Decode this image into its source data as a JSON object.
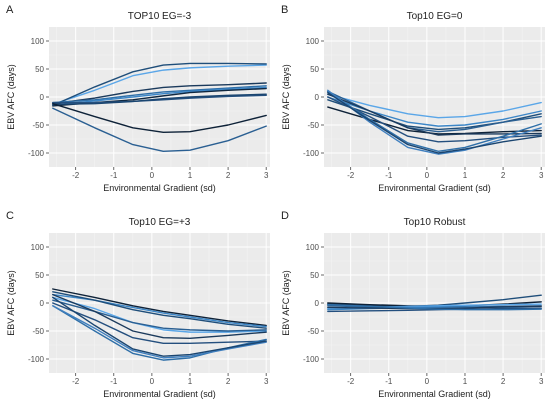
{
  "chart_data": [
    {
      "type": "line",
      "panel_letter": "A",
      "title": "TOP10 EG=-3",
      "xlabel": "Environmental Gradient (sd)",
      "ylabel": "EBV AFC (days)",
      "xlim": [
        -2.7,
        3.1
      ],
      "ylim": [
        -125,
        125
      ],
      "x_ticks": [
        -2,
        -1,
        0,
        1,
        2,
        3
      ],
      "y_ticks": [
        -100,
        -50,
        0,
        50,
        100
      ],
      "grid": true,
      "series": [
        {
          "color": "#5aa6e8",
          "x": [
            -2.6,
            -1.5,
            -0.5,
            0.3,
            1.0,
            2.0,
            3.0
          ],
          "y": [
            -13,
            12,
            38,
            48,
            52,
            55,
            57
          ]
        },
        {
          "color": "#1f4e7a",
          "x": [
            -2.6,
            -1.5,
            -0.5,
            0.3,
            1.0,
            2.0,
            3.0
          ],
          "y": [
            -15,
            18,
            45,
            57,
            60,
            60,
            59
          ]
        },
        {
          "color": "#1b3a5c",
          "x": [
            -2.6,
            -1.5,
            -0.5,
            0.3,
            1.0,
            2.0,
            3.0
          ],
          "y": [
            -12,
            -2,
            10,
            17,
            20,
            22,
            25
          ]
        },
        {
          "color": "#2f6fa8",
          "x": [
            -2.6,
            -1.5,
            -0.5,
            0.3,
            1.0,
            2.0,
            3.0
          ],
          "y": [
            -10,
            -5,
            3,
            9,
            12,
            16,
            20
          ]
        },
        {
          "color": "#3c86c7",
          "x": [
            -2.6,
            -1.5,
            -0.5,
            0.3,
            1.0,
            2.0,
            3.0
          ],
          "y": [
            -14,
            -7,
            0,
            6,
            10,
            14,
            17
          ]
        },
        {
          "color": "#0f2740",
          "x": [
            -2.6,
            -1.5,
            -0.5,
            0.3,
            1.0,
            2.0,
            3.0
          ],
          "y": [
            -16,
            -10,
            -5,
            2,
            8,
            12,
            15
          ]
        },
        {
          "color": "#244f7e",
          "x": [
            -2.6,
            -1.5,
            -0.5,
            0.3,
            1.0,
            2.0,
            3.0
          ],
          "y": [
            -10,
            -10,
            -8,
            -5,
            -2,
            1,
            3
          ]
        },
        {
          "color": "#1a4570",
          "x": [
            -2.6,
            -1.5,
            -0.5,
            0.3,
            1.0,
            2.0,
            3.0
          ],
          "y": [
            -13,
            -12,
            -8,
            -3,
            0,
            3,
            5
          ]
        },
        {
          "color": "#0e2238",
          "x": [
            -2.6,
            -1.5,
            -0.5,
            0.3,
            1.0,
            2.0,
            3.0
          ],
          "y": [
            -12,
            -35,
            -55,
            -63,
            -62,
            -50,
            -33
          ]
        },
        {
          "color": "#2a5f92",
          "x": [
            -2.6,
            -1.5,
            -0.5,
            0.3,
            1.0,
            2.0,
            3.0
          ],
          "y": [
            -20,
            -55,
            -85,
            -97,
            -95,
            -78,
            -52
          ]
        }
      ]
    },
    {
      "type": "line",
      "panel_letter": "B",
      "title": "Top10 EG=0",
      "xlabel": "Environmental Gradient (sd)",
      "ylabel": "EBV AFC (days)",
      "xlim": [
        -2.7,
        3.1
      ],
      "ylim": [
        -125,
        125
      ],
      "x_ticks": [
        -2,
        -1,
        0,
        1,
        2,
        3
      ],
      "y_ticks": [
        -100,
        -50,
        0,
        50,
        100
      ],
      "grid": true,
      "series": [
        {
          "color": "#5aa6e8",
          "x": [
            -2.6,
            -1.5,
            -0.5,
            0.3,
            1.0,
            2.0,
            3.0
          ],
          "y": [
            5,
            -15,
            -30,
            -37,
            -35,
            -25,
            -10
          ]
        },
        {
          "color": "#3c86c7",
          "x": [
            -2.6,
            -1.5,
            -0.5,
            0.3,
            1.0,
            2.0,
            3.0
          ],
          "y": [
            0,
            -25,
            -45,
            -52,
            -50,
            -40,
            -25
          ]
        },
        {
          "color": "#1f4e7a",
          "x": [
            -2.6,
            -1.5,
            -0.5,
            0.3,
            1.0,
            2.0,
            3.0
          ],
          "y": [
            -5,
            -30,
            -52,
            -58,
            -55,
            -45,
            -30
          ]
        },
        {
          "color": "#2a5f92",
          "x": [
            -2.6,
            -1.5,
            -0.5,
            0.3,
            1.0,
            2.0,
            3.0
          ],
          "y": [
            10,
            -25,
            -55,
            -62,
            -58,
            -45,
            -35
          ]
        },
        {
          "color": "#0e2238",
          "x": [
            -2.6,
            -1.5,
            -0.5,
            0.3,
            1.0,
            2.0,
            3.0
          ],
          "y": [
            -18,
            -40,
            -60,
            -66,
            -65,
            -62,
            -60
          ]
        },
        {
          "color": "#1b3a5c",
          "x": [
            -2.6,
            -1.5,
            -0.5,
            0.3,
            1.0,
            2.0,
            3.0
          ],
          "y": [
            5,
            -25,
            -55,
            -68,
            -66,
            -66,
            -65
          ]
        },
        {
          "color": "#244f7e",
          "x": [
            -2.6,
            -1.5,
            -0.5,
            0.3,
            1.0,
            2.0,
            3.0
          ],
          "y": [
            0,
            -35,
            -70,
            -80,
            -78,
            -72,
            -68
          ]
        },
        {
          "color": "#2f6fa8",
          "x": [
            -2.6,
            -1.5,
            -0.5,
            0.3,
            1.0,
            2.0,
            3.0
          ],
          "y": [
            10,
            -40,
            -82,
            -97,
            -90,
            -70,
            -48
          ]
        },
        {
          "color": "#3f7fbf",
          "x": [
            -2.6,
            -1.5,
            -0.5,
            0.3,
            1.0,
            2.0,
            3.0
          ],
          "y": [
            12,
            -45,
            -90,
            -102,
            -95,
            -75,
            -55
          ]
        },
        {
          "color": "#1a4570",
          "x": [
            -2.6,
            -1.5,
            -0.5,
            0.3,
            1.0,
            2.0,
            3.0
          ],
          "y": [
            8,
            -42,
            -85,
            -100,
            -93,
            -80,
            -70
          ]
        }
      ]
    },
    {
      "type": "line",
      "panel_letter": "C",
      "title": "Top10 EG=+3",
      "xlabel": "Environmental Gradient (sd)",
      "ylabel": "EBV AFC (days)",
      "xlim": [
        -2.7,
        3.1
      ],
      "ylim": [
        -125,
        125
      ],
      "x_ticks": [
        -2,
        -1,
        0,
        1,
        2,
        3
      ],
      "y_ticks": [
        -100,
        -50,
        0,
        50,
        100
      ],
      "grid": true,
      "series": [
        {
          "color": "#0e2238",
          "x": [
            -2.6,
            -1.5,
            -0.5,
            0.3,
            1.0,
            2.0,
            3.0
          ],
          "y": [
            25,
            10,
            -5,
            -15,
            -22,
            -32,
            -40
          ]
        },
        {
          "color": "#3c86c7",
          "x": [
            -2.6,
            -1.5,
            -0.5,
            0.3,
            1.0,
            2.0,
            3.0
          ],
          "y": [
            15,
            5,
            -8,
            -18,
            -25,
            -35,
            -42
          ]
        },
        {
          "color": "#1f4e7a",
          "x": [
            -2.6,
            -1.5,
            -0.5,
            0.3,
            1.0,
            2.0,
            3.0
          ],
          "y": [
            20,
            5,
            -12,
            -22,
            -28,
            -38,
            -45
          ]
        },
        {
          "color": "#5aa6e8",
          "x": [
            -2.6,
            -1.5,
            -0.5,
            0.3,
            1.0,
            2.0,
            3.0
          ],
          "y": [
            10,
            -10,
            -35,
            -48,
            -52,
            -52,
            -50
          ]
        },
        {
          "color": "#2a5f92",
          "x": [
            -2.6,
            -1.5,
            -0.5,
            0.3,
            1.0,
            2.0,
            3.0
          ],
          "y": [
            5,
            -15,
            -35,
            -45,
            -48,
            -50,
            -48
          ]
        },
        {
          "color": "#1b3a5c",
          "x": [
            -2.6,
            -1.5,
            -0.5,
            0.3,
            1.0,
            2.0,
            3.0
          ],
          "y": [
            15,
            -15,
            -50,
            -62,
            -63,
            -58,
            -52
          ]
        },
        {
          "color": "#244f7e",
          "x": [
            -2.6,
            -1.5,
            -0.5,
            0.3,
            1.0,
            2.0,
            3.0
          ],
          "y": [
            0,
            -30,
            -62,
            -72,
            -72,
            -70,
            -68
          ]
        },
        {
          "color": "#2f6fa8",
          "x": [
            -2.6,
            -1.5,
            -0.5,
            0.3,
            1.0,
            2.0,
            3.0
          ],
          "y": [
            -5,
            -50,
            -90,
            -102,
            -98,
            -80,
            -65
          ]
        },
        {
          "color": "#3f7fbf",
          "x": [
            -2.6,
            -1.5,
            -0.5,
            0.3,
            1.0,
            2.0,
            3.0
          ],
          "y": [
            -5,
            -45,
            -85,
            -98,
            -95,
            -82,
            -70
          ]
        },
        {
          "color": "#1a4570",
          "x": [
            -2.6,
            -1.5,
            -0.5,
            0.3,
            1.0,
            2.0,
            3.0
          ],
          "y": [
            10,
            -40,
            -82,
            -95,
            -92,
            -80,
            -68
          ]
        }
      ]
    },
    {
      "type": "line",
      "panel_letter": "D",
      "title": "Top10 Robust",
      "xlabel": "Environmental Gradient (sd)",
      "ylabel": "EBV AFC (days)",
      "xlim": [
        -2.7,
        3.1
      ],
      "ylim": [
        -125,
        125
      ],
      "x_ticks": [
        -2,
        -1,
        0,
        1,
        2,
        3
      ],
      "y_ticks": [
        -100,
        -50,
        0,
        50,
        100
      ],
      "grid": true,
      "series": [
        {
          "color": "#1f4e7a",
          "x": [
            -2.6,
            -1.5,
            -0.5,
            0.3,
            1.0,
            2.0,
            3.0
          ],
          "y": [
            -2,
            -5,
            -6,
            -4,
            0,
            6,
            14
          ]
        },
        {
          "color": "#0e2238",
          "x": [
            -2.6,
            -1.5,
            -0.5,
            0.3,
            1.0,
            2.0,
            3.0
          ],
          "y": [
            0,
            -3,
            -5,
            -6,
            -5,
            -2,
            2
          ]
        },
        {
          "color": "#5aa6e8",
          "x": [
            -2.6,
            -1.5,
            -0.5,
            0.3,
            1.0,
            2.0,
            3.0
          ],
          "y": [
            -10,
            -8,
            -6,
            -5,
            -4,
            -3,
            -2
          ]
        },
        {
          "color": "#2a5f92",
          "x": [
            -2.6,
            -1.5,
            -0.5,
            0.3,
            1.0,
            2.0,
            3.0
          ],
          "y": [
            -5,
            -7,
            -8,
            -8,
            -7,
            -6,
            -5
          ]
        },
        {
          "color": "#3c86c7",
          "x": [
            -2.6,
            -1.5,
            -0.5,
            0.3,
            1.0,
            2.0,
            3.0
          ],
          "y": [
            -12,
            -10,
            -8,
            -7,
            -7,
            -8,
            -10
          ]
        },
        {
          "color": "#1b3a5c",
          "x": [
            -2.6,
            -1.5,
            -0.5,
            0.3,
            1.0,
            2.0,
            3.0
          ],
          "y": [
            -8,
            -9,
            -10,
            -10,
            -9,
            -7,
            -6
          ]
        },
        {
          "color": "#244f7e",
          "x": [
            -2.6,
            -1.5,
            -0.5,
            0.3,
            1.0,
            2.0,
            3.0
          ],
          "y": [
            -15,
            -14,
            -13,
            -12,
            -11,
            -10,
            -9
          ]
        },
        {
          "color": "#2f6fa8",
          "x": [
            -2.6,
            -1.5,
            -0.5,
            0.3,
            1.0,
            2.0,
            3.0
          ],
          "y": [
            -3,
            -6,
            -9,
            -11,
            -12,
            -12,
            -11
          ]
        }
      ]
    }
  ]
}
